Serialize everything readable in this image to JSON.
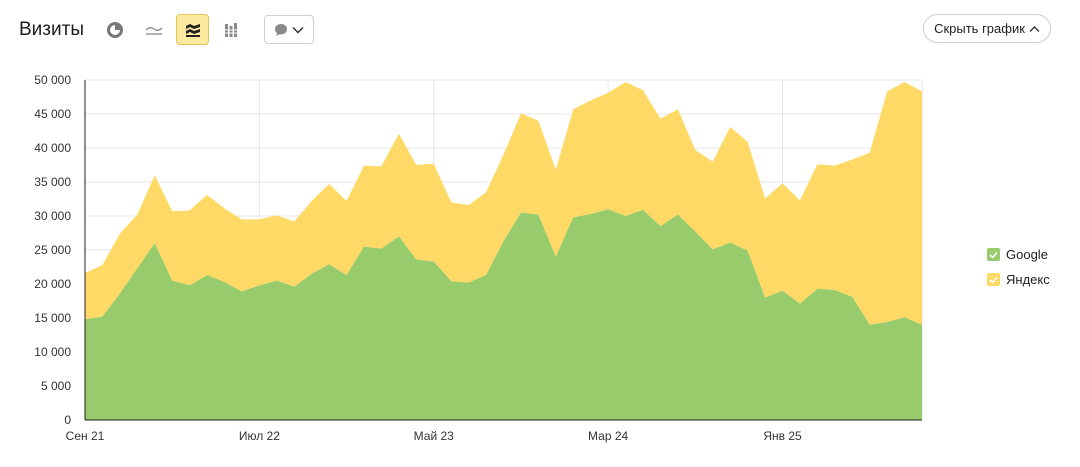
{
  "header": {
    "title": "Визиты",
    "hide_chart_label": "Скрыть график"
  },
  "toolbar_icons": [
    "pie-chart-icon",
    "line-chart-icon",
    "area-chart-icon",
    "bar-chart-icon",
    "comment-icon",
    "chevron-down-icon"
  ],
  "colors": {
    "google": "#98cb6b",
    "yandex": "#fed965",
    "active_button_bg": "#fde9a0",
    "grid": "#e6e6e6"
  },
  "chart_data": {
    "type": "area",
    "stacked": true,
    "title": "",
    "xlabel": "",
    "ylabel": "",
    "ylim": [
      0,
      50000
    ],
    "yticks": [
      0,
      5000,
      10000,
      15000,
      20000,
      25000,
      30000,
      35000,
      40000,
      45000,
      50000
    ],
    "ytick_labels": [
      "0",
      "5 000",
      "10 000",
      "15 000",
      "20 000",
      "25 000",
      "30 000",
      "35 000",
      "40 000",
      "45 000",
      "50 000"
    ],
    "x_tick_labels": [
      {
        "index": 0,
        "label": "Сен 21"
      },
      {
        "index": 10,
        "label": "Июл 22"
      },
      {
        "index": 20,
        "label": "Май 23"
      },
      {
        "index": 30,
        "label": "Мар 24"
      },
      {
        "index": 40,
        "label": "Янв 25"
      }
    ],
    "legend_position": "right",
    "grid": true,
    "x": [
      "Сен 21",
      "Окт 21",
      "Ноя 21",
      "Дек 21",
      "Янв 22",
      "Фев 22",
      "Мар 22",
      "Апр 22",
      "Май 22",
      "Июн 22",
      "Июл 22",
      "Авг 22",
      "Сен 22",
      "Окт 22",
      "Ноя 22",
      "Дек 22",
      "Янв 23",
      "Фев 23",
      "Мар 23",
      "Апр 23",
      "Май 23",
      "Июн 23",
      "Июл 23",
      "Авг 23",
      "Сен 23",
      "Окт 23",
      "Ноя 23",
      "Дек 23",
      "Янв 24",
      "Фев 24",
      "Мар 24",
      "Апр 24",
      "Май 24",
      "Июн 24",
      "Июл 24",
      "Авг 24",
      "Сен 24",
      "Окт 24",
      "Ноя 24",
      "Дек 24",
      "Янв 25",
      "Фев 25",
      "Мар 25",
      "Апр 25",
      "Май 25",
      "Июн 25",
      "Июл 25",
      "Авг 25",
      "Сен 25"
    ],
    "series": [
      {
        "name": "Google",
        "color": "#98cb6b",
        "values": [
          14800,
          15200,
          18600,
          22300,
          26000,
          20500,
          19800,
          21300,
          20300,
          18900,
          19800,
          20500,
          19600,
          21500,
          22900,
          21300,
          25500,
          25200,
          27000,
          23600,
          23300,
          20400,
          20200,
          21300,
          26300,
          30500,
          30200,
          24000,
          29800,
          30300,
          31000,
          30000,
          30900,
          28500,
          30200,
          27700,
          25100,
          26100,
          24900,
          18000,
          19000,
          17100,
          19300,
          19100,
          18100,
          14000,
          14400,
          15100,
          14000
        ]
      },
      {
        "name": "Яндекс",
        "color": "#fed965",
        "values": [
          6800,
          7600,
          8800,
          7900,
          10000,
          10200,
          11000,
          11800,
          10800,
          10600,
          9700,
          9600,
          9600,
          10700,
          11800,
          10900,
          11900,
          12100,
          15100,
          13900,
          14400,
          11600,
          11400,
          12200,
          12700,
          14600,
          13800,
          12800,
          15900,
          16700,
          17100,
          19700,
          17600,
          15800,
          15500,
          12000,
          12900,
          17000,
          16000,
          14600,
          15800,
          15200,
          18300,
          18300,
          20200,
          25300,
          33900,
          34600,
          34300
        ]
      }
    ]
  }
}
